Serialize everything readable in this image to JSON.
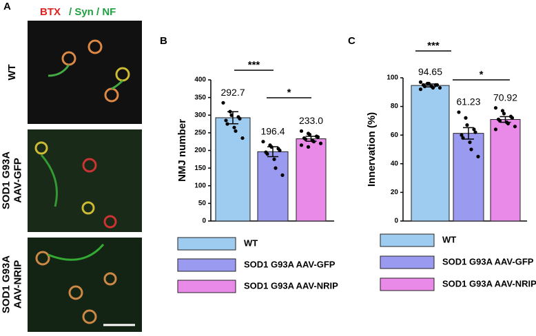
{
  "panel_a": {
    "panel_label": "A",
    "stain_red": "BTX",
    "stain_green": "/ Syn / NF",
    "rows": [
      [
        "WT"
      ],
      [
        "SOD1 G93A",
        "AAV-GFP"
      ],
      [
        "SOD1 G93A",
        "AAV-NRIP"
      ]
    ]
  },
  "chart_data": [
    {
      "type": "bar",
      "panel_label": "B",
      "y_label": "NMJ  number",
      "ylim": [
        0,
        400
      ],
      "yticks": [
        0,
        50,
        100,
        150,
        200,
        250,
        300,
        350,
        400
      ],
      "annotations": [
        "***",
        "*"
      ],
      "series": [
        {
          "name": "WT",
          "color": "#9ecbf0",
          "values": [
            292.7
          ],
          "value_labels": [
            "292.7"
          ],
          "errors": [
            17
          ],
          "points": [
            335,
            310,
            300,
            295,
            290,
            285,
            275,
            265,
            255,
            235
          ]
        },
        {
          "name": "SOD1 G93A AAV-GFP",
          "color": "#9a9af0",
          "values": [
            196.4
          ],
          "value_labels": [
            "196.4"
          ],
          "errors": [
            14
          ],
          "points": [
            225,
            215,
            210,
            205,
            200,
            195,
            190,
            175,
            150,
            130
          ]
        },
        {
          "name": "SOD1 G93A AAV-NRIP",
          "color": "#e98ae8",
          "values": [
            233.0
          ],
          "value_labels": [
            "233.0"
          ],
          "errors": [
            7
          ],
          "points": [
            255,
            248,
            245,
            240,
            238,
            235,
            232,
            228,
            225,
            220,
            215,
            210
          ]
        }
      ]
    },
    {
      "type": "bar",
      "panel_label": "C",
      "y_label": "Innervation (%)",
      "ylim": [
        0,
        100
      ],
      "yticks": [
        0,
        20,
        40,
        60,
        80,
        100
      ],
      "annotations": [
        "***",
        "*"
      ],
      "series": [
        {
          "name": "WT",
          "color": "#9ecbf0",
          "values": [
            94.65
          ],
          "value_labels": [
            "94.65"
          ],
          "errors": [
            1
          ],
          "points": [
            97,
            96,
            96,
            95,
            95,
            95,
            94,
            94,
            93,
            93,
            92
          ]
        },
        {
          "name": "SOD1 G93A AAV-GFP",
          "color": "#9a9af0",
          "values": [
            61.23
          ],
          "value_labels": [
            "61.23"
          ],
          "errors": [
            4
          ],
          "points": [
            76,
            72,
            67,
            64,
            62,
            60,
            58,
            55,
            50,
            45
          ]
        },
        {
          "name": "SOD1 G93A AAV-NRIP",
          "color": "#e98ae8",
          "values": [
            70.92
          ],
          "value_labels": [
            "70.92"
          ],
          "errors": [
            2
          ],
          "points": [
            79,
            77,
            75,
            73,
            72,
            71,
            70,
            69,
            68,
            66,
            64
          ]
        }
      ]
    }
  ]
}
